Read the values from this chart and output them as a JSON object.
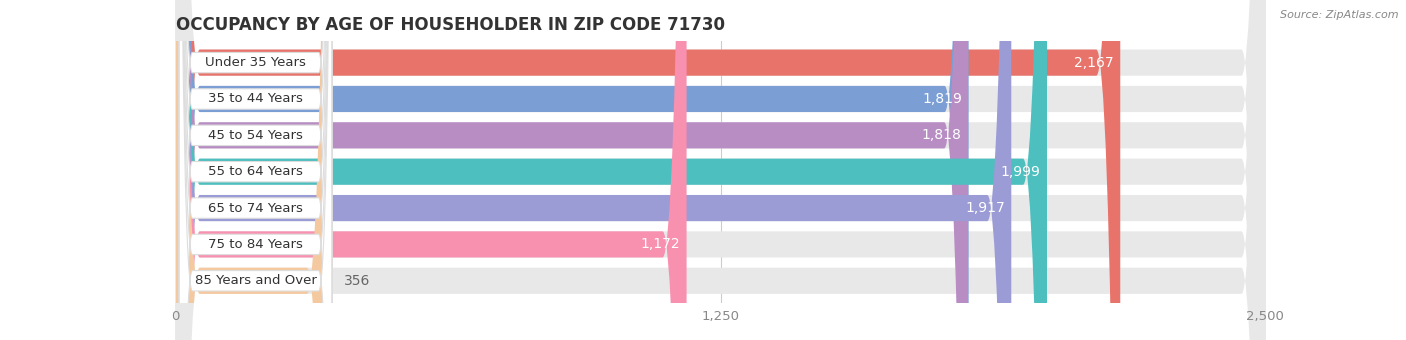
{
  "title": "OCCUPANCY BY AGE OF HOUSEHOLDER IN ZIP CODE 71730",
  "source": "Source: ZipAtlas.com",
  "categories": [
    "Under 35 Years",
    "35 to 44 Years",
    "45 to 54 Years",
    "55 to 64 Years",
    "65 to 74 Years",
    "75 to 84 Years",
    "85 Years and Over"
  ],
  "values": [
    2167,
    1819,
    1818,
    1999,
    1917,
    1172,
    356
  ],
  "bar_colors": [
    "#E8736A",
    "#7B9FD4",
    "#B88DC4",
    "#4DBFBF",
    "#9B9BD6",
    "#F890B0",
    "#F5C9A0"
  ],
  "bar_background": "#E8E8E8",
  "xlim": [
    0,
    2500
  ],
  "xticks": [
    0,
    1250,
    2500
  ],
  "title_fontsize": 12,
  "label_fontsize": 9.5,
  "value_fontsize": 9,
  "background_color": "#FFFFFF",
  "bar_height": 0.72,
  "label_box_color": "#FFFFFF",
  "bar_gap": 1.0
}
